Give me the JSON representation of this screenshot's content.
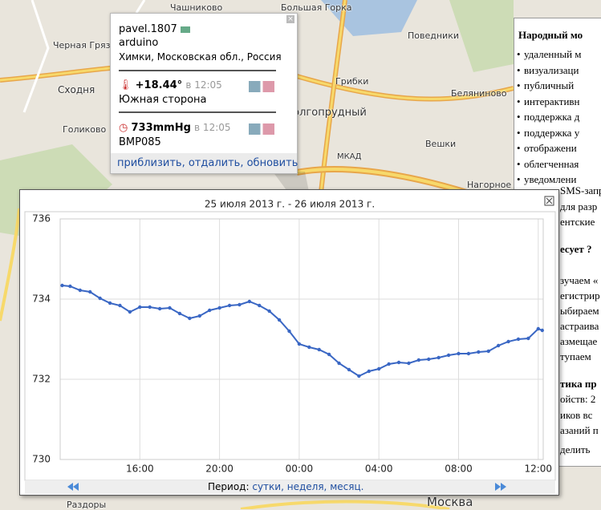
{
  "map_labels": [
    "Чашниково",
    "Большая Горка",
    "Черная Грязь",
    "Сходня",
    "Голиково",
    "Поведники",
    "Грибки",
    "Беляниново",
    "Вешки",
    "Нагорное",
    "Долгопрудный",
    "МКАД",
    "Москва",
    "Раздоры"
  ],
  "popup": {
    "user": "pavel.1807",
    "device": "arduino",
    "location": "Химки, Московская обл., Россия",
    "sensors": [
      {
        "value": "+18.44°",
        "time": "в 12:05",
        "name": "Южная сторона"
      },
      {
        "value": "733mmHg",
        "time": "в 12:05",
        "name": "BMP085"
      }
    ],
    "links": [
      "приблизить,",
      "отдалить,",
      "обновить"
    ]
  },
  "side_panel": {
    "title": "Народный мо",
    "items": [
      "удаленный м",
      "визуализаци",
      "публичный",
      "интерактивн",
      "поддержка д",
      "поддержка у",
      "отображени",
      "облегченная",
      "уведомлени"
    ],
    "lines": [
      "SMS-запрос",
      "для разр",
      "ентские",
      "есует ?",
      "зучаем «",
      "егистрир",
      "ыбираем",
      "астраива",
      "азмещае",
      "тупаем",
      "тика пр",
      "ойств: 2",
      "иков вс",
      "азаний п",
      "делить"
    ]
  },
  "chart_data": {
    "type": "line",
    "title": "25 июля 2013 г. - 26 июля 2013 г.",
    "x": [
      12.1,
      12.5,
      13,
      13.5,
      14,
      14.5,
      15,
      15.5,
      16,
      16.5,
      17,
      17.5,
      18,
      18.5,
      19,
      19.5,
      20,
      20.5,
      21,
      21.5,
      22,
      22.5,
      23,
      23.5,
      24,
      24.5,
      25,
      25.5,
      26,
      26.5,
      27,
      27.5,
      28,
      28.5,
      29,
      29.5,
      30,
      30.5,
      31,
      31.5,
      32,
      32.5,
      33,
      33.5,
      34,
      34.5,
      35,
      35.5,
      36,
      36.2
    ],
    "series": [
      {
        "name": "733mmHg",
        "color": "#3a67c4",
        "values": [
          734.34,
          734.32,
          734.22,
          734.18,
          734.02,
          733.9,
          733.84,
          733.68,
          733.8,
          733.8,
          733.76,
          733.78,
          733.64,
          733.52,
          733.58,
          733.72,
          733.78,
          733.84,
          733.86,
          733.94,
          733.84,
          733.7,
          733.48,
          733.2,
          732.88,
          732.8,
          732.74,
          732.62,
          732.4,
          732.24,
          732.08,
          732.2,
          732.26,
          732.38,
          732.42,
          732.4,
          732.48,
          732.5,
          732.54,
          732.6,
          732.64,
          732.64,
          732.68,
          732.7,
          732.84,
          732.94,
          733.0,
          733.02,
          733.26,
          733.22
        ]
      }
    ],
    "xlim": [
      12,
      36.25
    ],
    "xticks": [
      {
        "value": 16,
        "label": "16:00"
      },
      {
        "value": 20,
        "label": "20:00"
      },
      {
        "value": 24,
        "label": "00:00"
      },
      {
        "value": 28,
        "label": "04:00"
      },
      {
        "value": 32,
        "label": "08:00"
      },
      {
        "value": 36,
        "label": "12:00"
      }
    ],
    "ylim": [
      730,
      736
    ],
    "yticks": [
      730,
      732,
      734,
      736
    ],
    "grid": true
  },
  "chart_footer": {
    "label": "Период:",
    "links": [
      "сутки,",
      "неделя,",
      "месяц."
    ]
  }
}
